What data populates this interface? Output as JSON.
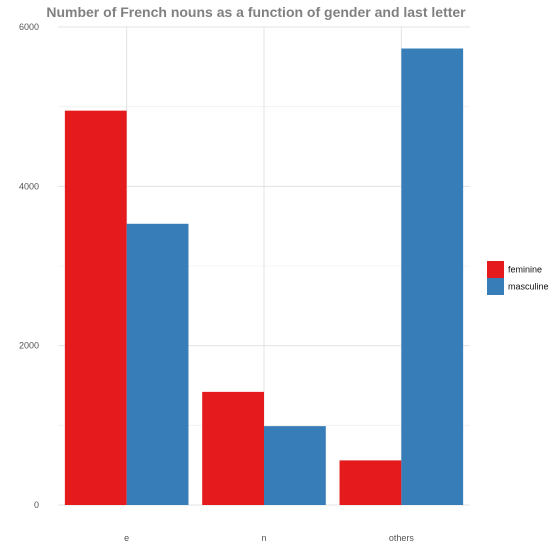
{
  "chart_data": {
    "type": "bar",
    "title": "Number of French nouns as a function of gender and last letter",
    "xlabel": "",
    "ylabel": "",
    "categories": [
      "e",
      "n",
      "others"
    ],
    "series": [
      {
        "name": "feminine",
        "values": [
          4950,
          1420,
          560
        ],
        "color": "#e41a1c"
      },
      {
        "name": "masculine",
        "values": [
          3530,
          990,
          5730
        ],
        "color": "#377eb8"
      }
    ],
    "yticks": [
      0,
      2000,
      4000,
      6000
    ],
    "ylim": [
      0,
      6000
    ],
    "grid": true,
    "legend_position": "right"
  }
}
